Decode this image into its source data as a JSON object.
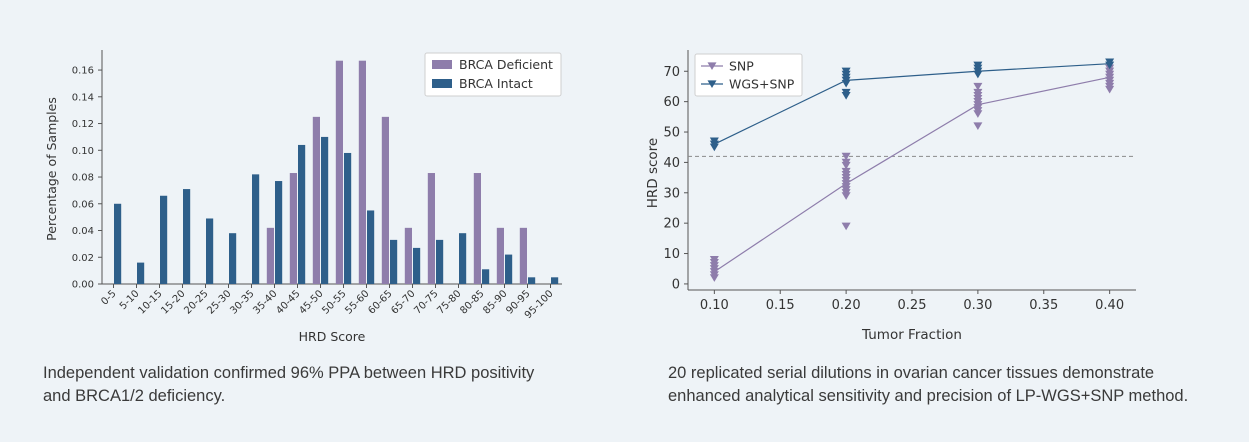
{
  "captions": {
    "left": [
      "Independent validation confirmed 96% PPA between HRD positivity",
      "and BRCA1/2 deficiency."
    ],
    "right": [
      "20 replicated serial dilutions in ovarian cancer tissues demonstrate",
      "enhanced analytical sensitivity and precision of LP-WGS+SNP method."
    ]
  },
  "chart_data": [
    {
      "type": "bar",
      "title": "",
      "xlabel": "HRD Score",
      "ylabel": "Percentage of Samples",
      "ylim": [
        0,
        0.175
      ],
      "yticks": [
        "0.00",
        "0.02",
        "0.04",
        "0.06",
        "0.08",
        "0.10",
        "0.12",
        "0.14",
        "0.16"
      ],
      "categories": [
        "0-5",
        "5-10",
        "10-15",
        "15-20",
        "20-25",
        "25-30",
        "30-35",
        "35-40",
        "40-45",
        "45-50",
        "50-55",
        "55-60",
        "60-65",
        "65-70",
        "70-75",
        "75-80",
        "80-85",
        "85-90",
        "90-95",
        "95-100"
      ],
      "series": [
        {
          "name": "BRCA Deficient",
          "color": "#8e7dab",
          "values": [
            0,
            0,
            0,
            0,
            0,
            0,
            0,
            0.042,
            0.083,
            0.125,
            0.167,
            0.167,
            0.125,
            0.042,
            0.083,
            0,
            0.083,
            0.042,
            0.042,
            0
          ]
        },
        {
          "name": "BRCA Intact",
          "color": "#2e5f8a",
          "values": [
            0.06,
            0.016,
            0.066,
            0.071,
            0.049,
            0.038,
            0.082,
            0.077,
            0.104,
            0.11,
            0.098,
            0.055,
            0.033,
            0.027,
            0.033,
            0.038,
            0.011,
            0.022,
            0.005,
            0.005
          ]
        }
      ],
      "legend": "top-right"
    },
    {
      "type": "line",
      "title": "",
      "xlabel": "Tumor Fraction",
      "ylabel": "HRD score",
      "xlim": [
        0.08,
        0.42
      ],
      "ylim": [
        -2,
        77
      ],
      "xticks": [
        "0.10",
        "0.15",
        "0.20",
        "0.25",
        "0.30",
        "0.35",
        "0.40"
      ],
      "yticks": [
        "0",
        "10",
        "20",
        "30",
        "40",
        "50",
        "60",
        "70"
      ],
      "threshold": 42,
      "series": [
        {
          "name": "SNP",
          "color": "#8e7dab",
          "line_x": [
            0.1,
            0.2,
            0.3,
            0.4
          ],
          "line_y": [
            4,
            33,
            59,
            68
          ],
          "points": [
            {
              "x": 0.1,
              "y": [
                2,
                3,
                4,
                5,
                6,
                7,
                8
              ]
            },
            {
              "x": 0.2,
              "y": [
                19,
                29,
                30,
                31,
                32,
                33,
                34,
                35,
                36,
                37,
                39,
                40,
                42
              ]
            },
            {
              "x": 0.3,
              "y": [
                52,
                56,
                57,
                58,
                59,
                60,
                61,
                62,
                63,
                65
              ]
            },
            {
              "x": 0.4,
              "y": [
                64,
                65,
                66,
                67,
                68,
                69,
                70,
                71
              ]
            }
          ]
        },
        {
          "name": "WGS+SNP",
          "color": "#2e5f8a",
          "line_x": [
            0.1,
            0.2,
            0.3,
            0.4
          ],
          "line_y": [
            46,
            67,
            70,
            72.5
          ],
          "points": [
            {
              "x": 0.1,
              "y": [
                45,
                46,
                47
              ]
            },
            {
              "x": 0.2,
              "y": [
                62,
                63,
                66,
                67,
                68,
                69,
                70
              ]
            },
            {
              "x": 0.3,
              "y": [
                69,
                70,
                71,
                72
              ]
            },
            {
              "x": 0.4,
              "y": [
                72,
                73
              ]
            }
          ]
        }
      ],
      "legend": "top-left"
    }
  ]
}
